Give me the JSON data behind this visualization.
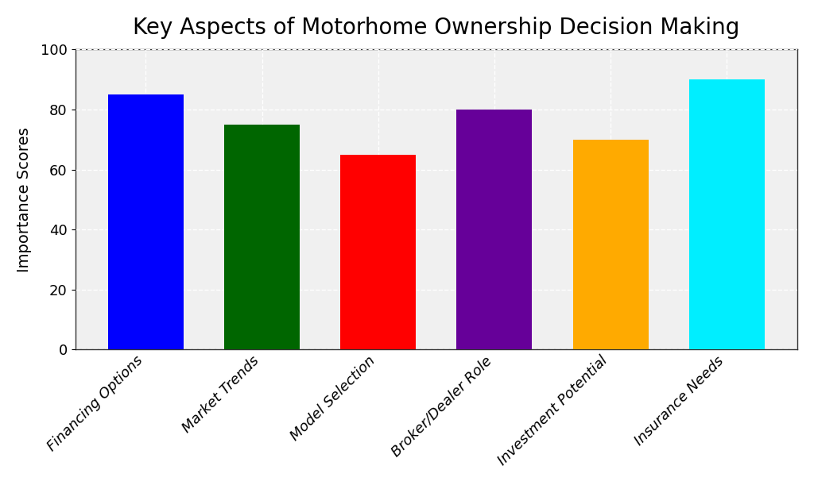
{
  "title": "Key Aspects of Motorhome Ownership Decision Making",
  "categories": [
    "Financing Options",
    "Market Trends",
    "Model Selection",
    "Broker/Dealer Role",
    "Investment Potential",
    "Insurance Needs"
  ],
  "values": [
    85,
    75,
    65,
    80,
    70,
    90
  ],
  "bar_colors": [
    "#0000ff",
    "#006600",
    "#ff0000",
    "#660099",
    "#ffaa00",
    "#00eeff"
  ],
  "ylabel": "Importance Scores",
  "ylim": [
    0,
    100
  ],
  "yticks": [
    0,
    20,
    40,
    60,
    80,
    100
  ],
  "title_fontsize": 20,
  "label_fontsize": 14,
  "tick_fontsize": 13,
  "background_color": "#ffffff",
  "plot_bg_color": "#f0f0f0",
  "grid_color": "#ffffff",
  "bar_width": 0.65,
  "outer_border_color": "#999999"
}
